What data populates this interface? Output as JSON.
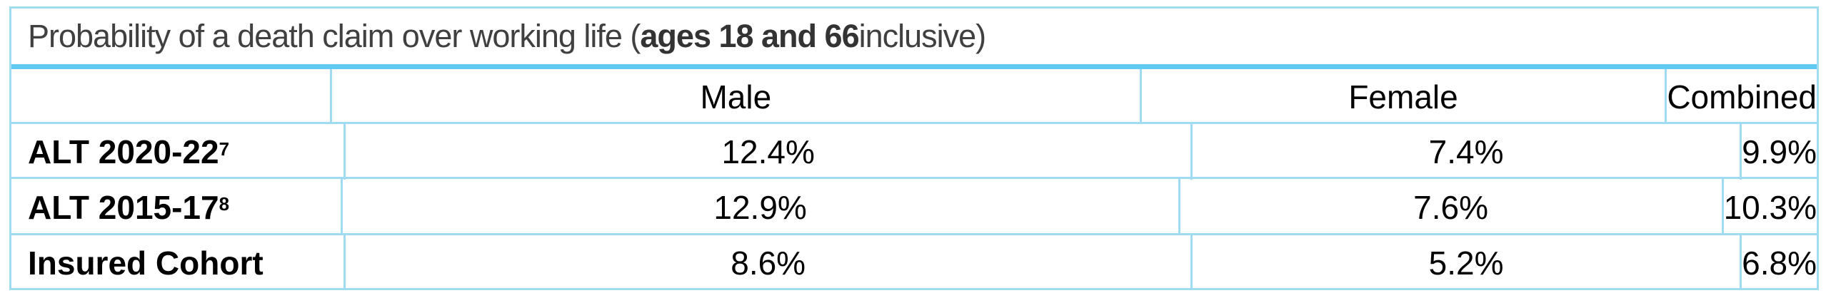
{
  "title": {
    "prefix": "Probability of a death claim over working life (",
    "bold": "ages 18 and 66",
    "suffix": " inclusive)"
  },
  "columns": [
    "",
    "Male",
    "Female",
    "Combined"
  ],
  "rows": [
    {
      "label": "ALT 2020-22",
      "footnote": "7",
      "values": [
        "12.4%",
        "7.4%",
        "9.9%"
      ]
    },
    {
      "label": "ALT 2015-17",
      "footnote": "8",
      "values": [
        "12.9%",
        "7.6%",
        "10.3%"
      ]
    },
    {
      "label": "Insured Cohort",
      "footnote": "",
      "values": [
        "8.6%",
        "5.2%",
        "6.8%"
      ]
    }
  ],
  "colors": {
    "border": "#9fdcf3",
    "title_rule": "#62c9f2",
    "title_text": "#404040"
  }
}
